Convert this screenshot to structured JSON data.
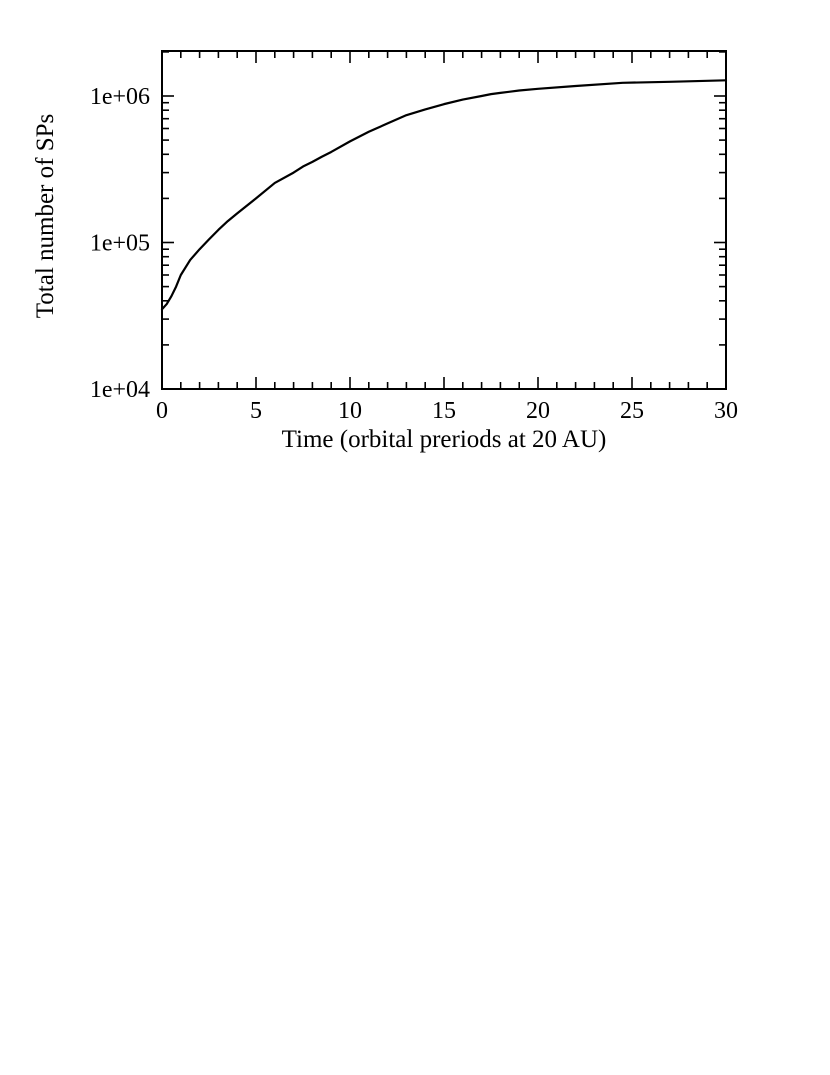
{
  "chart_data": {
    "type": "line",
    "title": "",
    "xlabel": "Time (orbital preriods at 20 AU)",
    "ylabel": "Total number of SPs",
    "xlim": [
      0,
      30
    ],
    "ylim": [
      10000,
      2000000
    ],
    "yscale": "log",
    "grid": false,
    "line_color": "#000000",
    "x_ticks": [
      {
        "value": 0,
        "label": "0"
      },
      {
        "value": 5,
        "label": "5"
      },
      {
        "value": 10,
        "label": "10"
      },
      {
        "value": 15,
        "label": "15"
      },
      {
        "value": 20,
        "label": "20"
      },
      {
        "value": 25,
        "label": "25"
      },
      {
        "value": 30,
        "label": "30"
      }
    ],
    "y_ticks": [
      {
        "value": 10000,
        "label": "1e+04"
      },
      {
        "value": 100000,
        "label": "1e+05"
      },
      {
        "value": 1000000,
        "label": "1e+06"
      }
    ],
    "series": [
      {
        "x": [
          0,
          0.25,
          0.5,
          0.75,
          1,
          1.5,
          2,
          2.5,
          3,
          3.5,
          4,
          5,
          6,
          7,
          7.5,
          8,
          8.5,
          9,
          10,
          11,
          12,
          13,
          14,
          15,
          16,
          17,
          17.5,
          18,
          19,
          20,
          22,
          24.5,
          27,
          30
        ],
        "y": [
          35000,
          38000,
          43000,
          50000,
          60000,
          76000,
          90000,
          105000,
          122000,
          140000,
          158000,
          200000,
          255000,
          300000,
          330000,
          355000,
          385000,
          415000,
          490000,
          570000,
          650000,
          740000,
          810000,
          880000,
          945000,
          1000000,
          1030000,
          1050000,
          1090000,
          1120000,
          1170000,
          1230000,
          1250000,
          1280000
        ]
      }
    ]
  }
}
